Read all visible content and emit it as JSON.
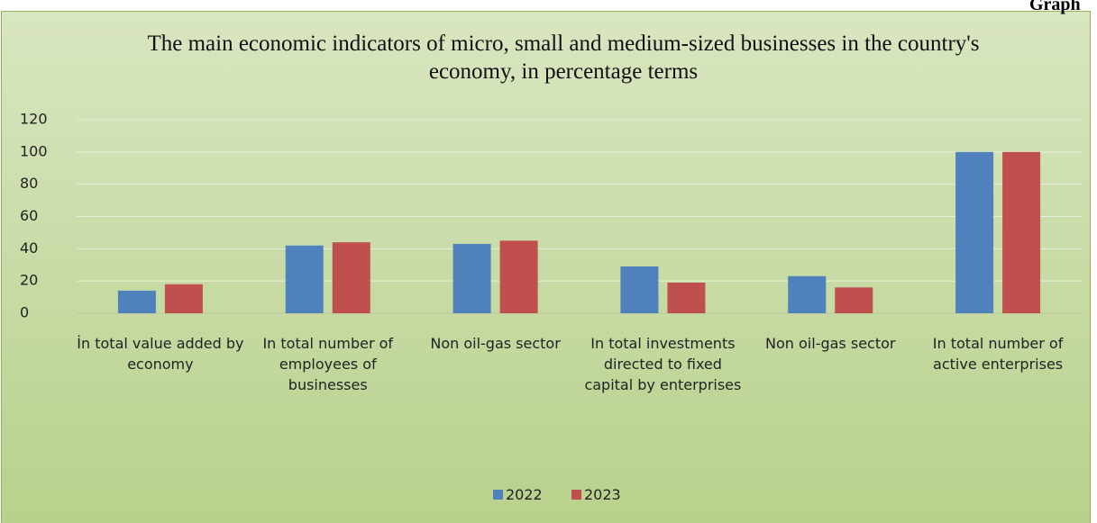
{
  "corner_label": "Graph",
  "chart_data": {
    "type": "bar",
    "title": "The main economic indicators of micro, small and medium-sized businesses in the country's economy, in percentage terms",
    "categories": [
      "İn total value added by economy",
      "In total number of employees of businesses",
      "Non oil-gas sector",
      "In total investments directed to fixed capital by enterprises",
      "Non oil-gas sector",
      "In total number of active enterprises"
    ],
    "series": [
      {
        "name": "2022",
        "color": "#4f81bd",
        "values": [
          14,
          42,
          43,
          29,
          23,
          100
        ]
      },
      {
        "name": "2023",
        "color": "#c0504d",
        "values": [
          18,
          44,
          45,
          19,
          16,
          100
        ]
      }
    ],
    "ylim": [
      0,
      120
    ],
    "yticks": [
      0,
      20,
      40,
      60,
      80,
      100,
      120
    ],
    "grid": true,
    "legend": "bottom"
  }
}
